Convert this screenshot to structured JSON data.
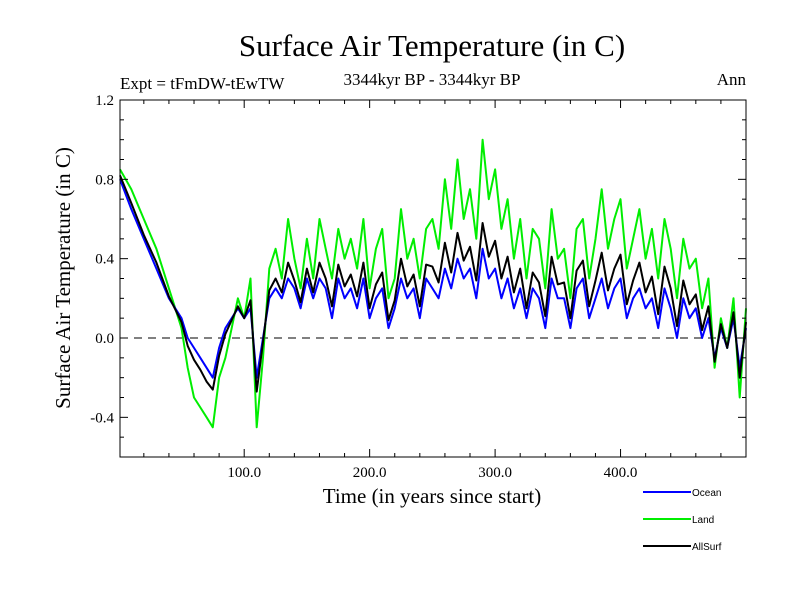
{
  "chart_data": {
    "type": "line",
    "title": "Surface Air Temperature (in C)",
    "subtitle_left": "Expt = tFmDW-tEwTW",
    "subtitle_center": "3344kyr BP - 3344kyr BP",
    "subtitle_right": "Ann",
    "xlabel": "Time (in years since start)",
    "ylabel": "Surface Air Temperature (in C)",
    "xlim": [
      1,
      500
    ],
    "ylim": [
      -0.6,
      1.2
    ],
    "x_ticks": [
      {
        "value": 100,
        "label": "100.0"
      },
      {
        "value": 200,
        "label": "200.0"
      },
      {
        "value": 300,
        "label": "300.0"
      },
      {
        "value": 400,
        "label": "400.0"
      }
    ],
    "y_ticks": [
      {
        "value": -0.4,
        "label": "-0.4"
      },
      {
        "value": 0.0,
        "label": "0.0"
      },
      {
        "value": 0.4,
        "label": "0.4"
      },
      {
        "value": 0.8,
        "label": "0.8"
      },
      {
        "value": 1.2,
        "label": "1.2"
      }
    ],
    "zero_line": 0.0,
    "series": [
      {
        "name": "Land",
        "color": "#00ee00",
        "x": [
          1,
          10,
          20,
          30,
          40,
          50,
          55,
          60,
          65,
          70,
          75,
          80,
          85,
          90,
          95,
          100,
          105,
          110,
          115,
          120,
          125,
          130,
          135,
          140,
          145,
          150,
          155,
          160,
          165,
          170,
          175,
          180,
          185,
          190,
          195,
          200,
          205,
          210,
          215,
          220,
          225,
          230,
          235,
          240,
          245,
          250,
          255,
          260,
          265,
          270,
          275,
          280,
          285,
          290,
          295,
          300,
          305,
          310,
          315,
          320,
          325,
          330,
          335,
          340,
          345,
          350,
          355,
          360,
          365,
          370,
          375,
          380,
          385,
          390,
          395,
          400,
          405,
          410,
          415,
          420,
          425,
          430,
          435,
          440,
          445,
          450,
          455,
          460,
          465,
          470,
          475,
          480,
          485,
          490,
          495,
          500
        ],
        "values": [
          0.85,
          0.75,
          0.6,
          0.45,
          0.25,
          0.05,
          -0.15,
          -0.3,
          -0.35,
          -0.4,
          -0.45,
          -0.2,
          -0.1,
          0.05,
          0.2,
          0.1,
          0.3,
          -0.45,
          -0.1,
          0.35,
          0.45,
          0.3,
          0.6,
          0.4,
          0.25,
          0.5,
          0.3,
          0.6,
          0.45,
          0.3,
          0.55,
          0.4,
          0.5,
          0.35,
          0.6,
          0.25,
          0.45,
          0.55,
          0.2,
          0.3,
          0.65,
          0.4,
          0.5,
          0.3,
          0.55,
          0.6,
          0.45,
          0.8,
          0.55,
          0.9,
          0.6,
          0.75,
          0.5,
          1.0,
          0.7,
          0.85,
          0.55,
          0.7,
          0.4,
          0.6,
          0.3,
          0.55,
          0.5,
          0.25,
          0.65,
          0.4,
          0.45,
          0.2,
          0.55,
          0.6,
          0.3,
          0.5,
          0.75,
          0.45,
          0.6,
          0.7,
          0.35,
          0.5,
          0.65,
          0.4,
          0.55,
          0.3,
          0.6,
          0.45,
          0.2,
          0.5,
          0.35,
          0.4,
          0.15,
          0.3,
          -0.15,
          0.1,
          -0.05,
          0.2,
          -0.3,
          0.15
        ]
      },
      {
        "name": "Ocean",
        "color": "#0000ff",
        "x": [
          1,
          10,
          20,
          30,
          40,
          50,
          55,
          60,
          65,
          70,
          75,
          80,
          85,
          90,
          95,
          100,
          105,
          110,
          115,
          120,
          125,
          130,
          135,
          140,
          145,
          150,
          155,
          160,
          165,
          170,
          175,
          180,
          185,
          190,
          195,
          200,
          205,
          210,
          215,
          220,
          225,
          230,
          235,
          240,
          245,
          250,
          255,
          260,
          265,
          270,
          275,
          280,
          285,
          290,
          295,
          300,
          305,
          310,
          315,
          320,
          325,
          330,
          335,
          340,
          345,
          350,
          355,
          360,
          365,
          370,
          375,
          380,
          385,
          390,
          395,
          400,
          405,
          410,
          415,
          420,
          425,
          430,
          435,
          440,
          445,
          450,
          455,
          460,
          465,
          470,
          475,
          480,
          485,
          490,
          495,
          500
        ],
        "values": [
          0.8,
          0.65,
          0.5,
          0.35,
          0.2,
          0.1,
          0.0,
          -0.05,
          -0.1,
          -0.15,
          -0.2,
          -0.05,
          0.05,
          0.1,
          0.15,
          0.1,
          0.15,
          -0.2,
          0.0,
          0.2,
          0.25,
          0.2,
          0.3,
          0.25,
          0.15,
          0.3,
          0.2,
          0.3,
          0.25,
          0.1,
          0.3,
          0.2,
          0.25,
          0.15,
          0.3,
          0.1,
          0.2,
          0.25,
          0.05,
          0.15,
          0.3,
          0.2,
          0.25,
          0.1,
          0.3,
          0.25,
          0.2,
          0.35,
          0.25,
          0.4,
          0.3,
          0.35,
          0.2,
          0.45,
          0.3,
          0.35,
          0.2,
          0.3,
          0.15,
          0.25,
          0.1,
          0.25,
          0.2,
          0.05,
          0.3,
          0.2,
          0.2,
          0.05,
          0.25,
          0.3,
          0.1,
          0.2,
          0.3,
          0.15,
          0.25,
          0.3,
          0.1,
          0.2,
          0.25,
          0.15,
          0.2,
          0.05,
          0.25,
          0.15,
          0.0,
          0.2,
          0.1,
          0.15,
          0.0,
          0.1,
          -0.1,
          0.05,
          -0.05,
          0.1,
          -0.15,
          0.05
        ]
      },
      {
        "name": "AllSurf",
        "color": "#000000",
        "x": [
          1,
          10,
          20,
          30,
          40,
          50,
          55,
          60,
          65,
          70,
          75,
          80,
          85,
          90,
          95,
          100,
          105,
          110,
          115,
          120,
          125,
          130,
          135,
          140,
          145,
          150,
          155,
          160,
          165,
          170,
          175,
          180,
          185,
          190,
          195,
          200,
          205,
          210,
          215,
          220,
          225,
          230,
          235,
          240,
          245,
          250,
          255,
          260,
          265,
          270,
          275,
          280,
          285,
          290,
          295,
          300,
          305,
          310,
          315,
          320,
          325,
          330,
          335,
          340,
          345,
          350,
          355,
          360,
          365,
          370,
          375,
          380,
          385,
          390,
          395,
          400,
          405,
          410,
          415,
          420,
          425,
          430,
          435,
          440,
          445,
          450,
          455,
          460,
          465,
          470,
          475,
          480,
          485,
          490,
          495,
          500
        ],
        "values": [
          0.82,
          0.68,
          0.52,
          0.38,
          0.21,
          0.08,
          -0.04,
          -0.11,
          -0.16,
          -0.22,
          -0.26,
          -0.09,
          0.02,
          0.09,
          0.16,
          0.1,
          0.19,
          -0.27,
          -0.02,
          0.24,
          0.3,
          0.23,
          0.38,
          0.29,
          0.18,
          0.35,
          0.23,
          0.38,
          0.3,
          0.16,
          0.37,
          0.26,
          0.32,
          0.21,
          0.38,
          0.15,
          0.27,
          0.33,
          0.09,
          0.19,
          0.4,
          0.26,
          0.32,
          0.16,
          0.37,
          0.36,
          0.28,
          0.48,
          0.33,
          0.53,
          0.39,
          0.46,
          0.29,
          0.58,
          0.41,
          0.49,
          0.3,
          0.41,
          0.23,
          0.35,
          0.15,
          0.33,
          0.28,
          0.11,
          0.41,
          0.27,
          0.28,
          0.1,
          0.34,
          0.39,
          0.16,
          0.29,
          0.43,
          0.24,
          0.35,
          0.42,
          0.17,
          0.29,
          0.38,
          0.23,
          0.31,
          0.12,
          0.36,
          0.25,
          0.06,
          0.29,
          0.17,
          0.22,
          0.04,
          0.16,
          -0.12,
          0.07,
          -0.05,
          0.13,
          -0.2,
          0.08
        ]
      }
    ],
    "legend": {
      "position": "bottom-right",
      "entries": [
        {
          "name": "Ocean",
          "color": "#0000ff"
        },
        {
          "name": "Land",
          "color": "#00ee00"
        },
        {
          "name": "AllSurf",
          "color": "#000000"
        }
      ]
    }
  }
}
